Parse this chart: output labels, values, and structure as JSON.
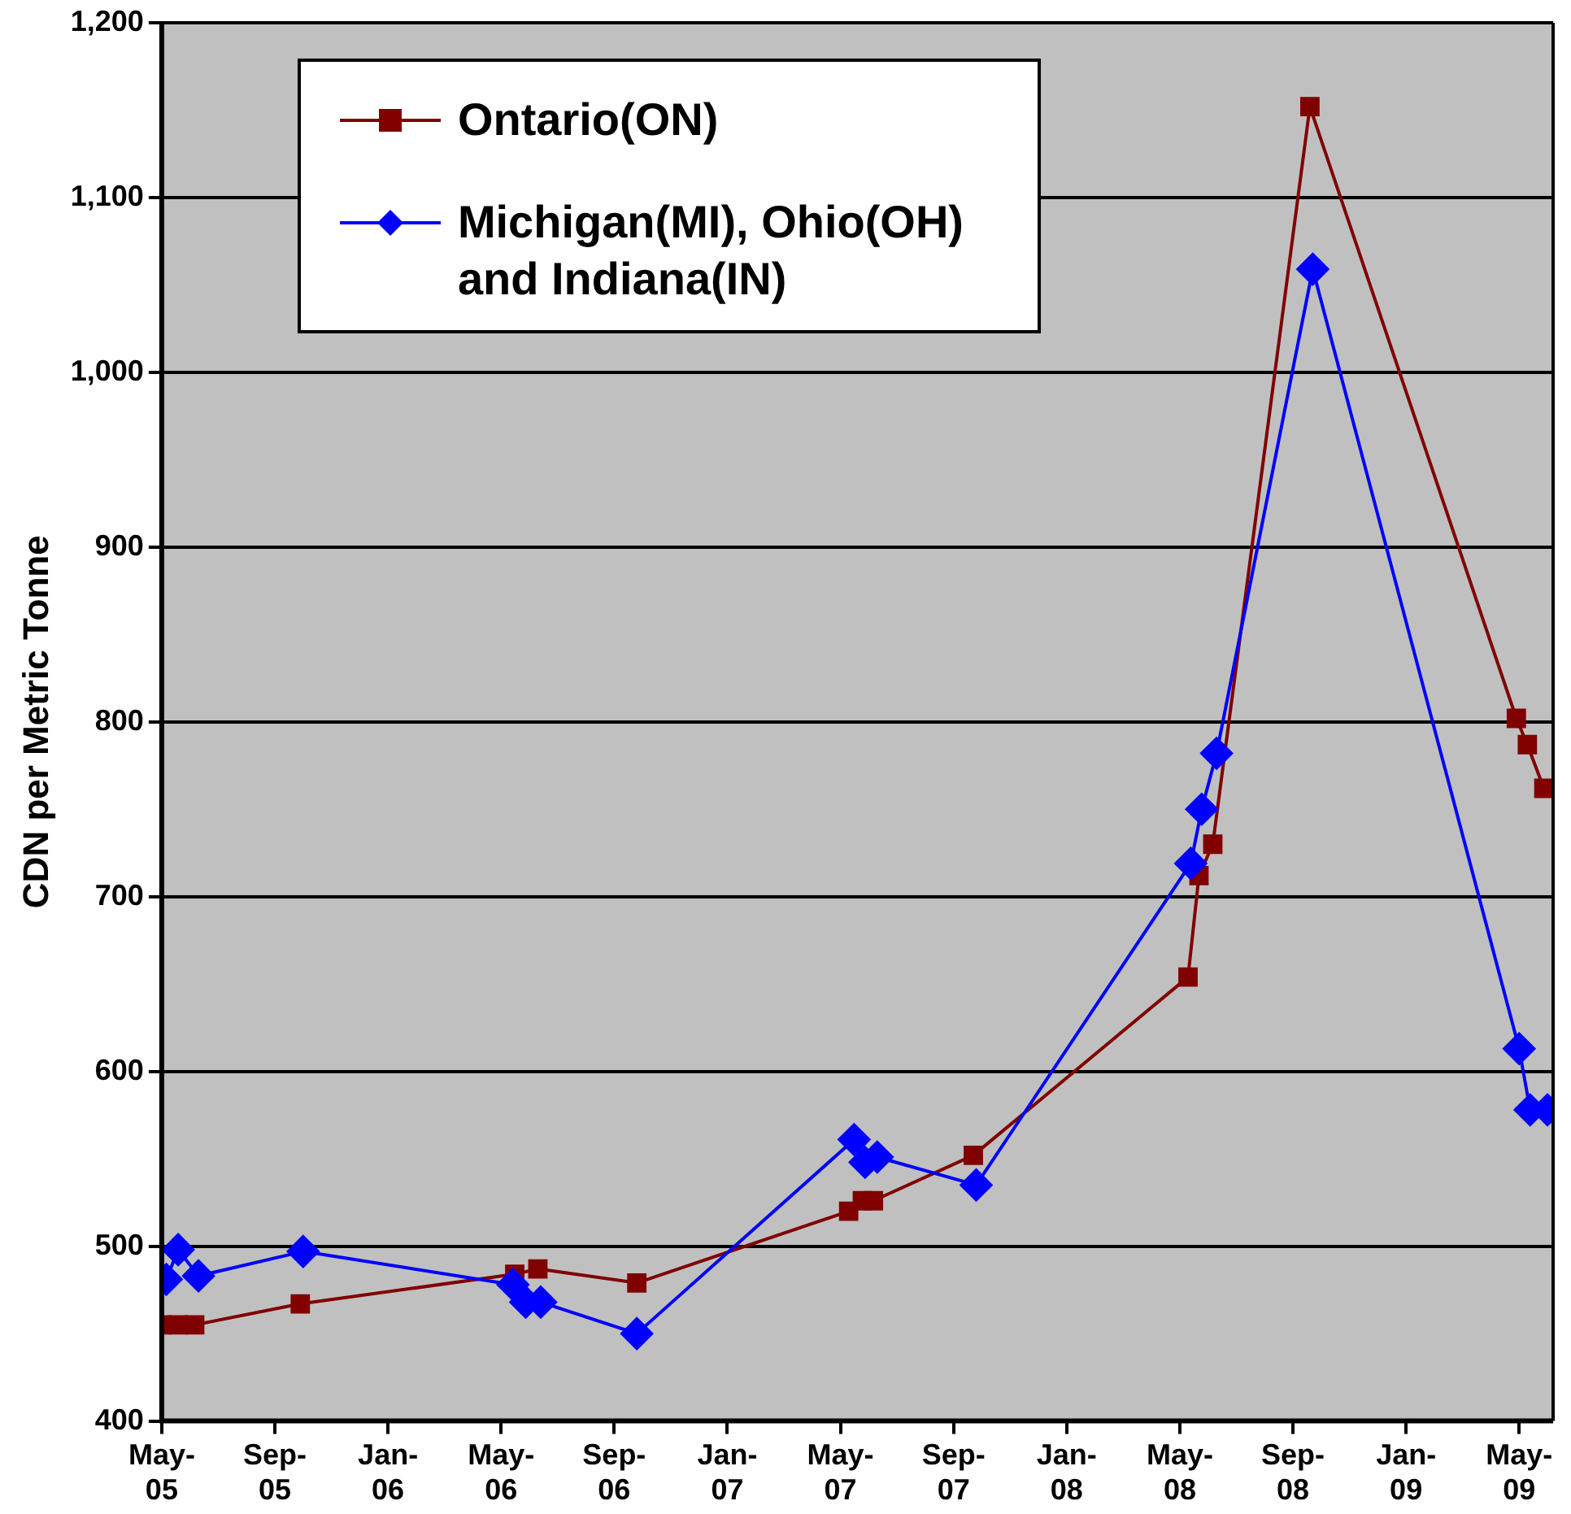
{
  "chart_data": {
    "type": "line",
    "ylabel": "CDN per Metric Tonne",
    "xlim": [
      "2005-05-01",
      "2009-06-07"
    ],
    "xticks": [
      {
        "value": "2005-05",
        "label": "May-\n05"
      },
      {
        "value": "2005-09",
        "label": "Sep-\n05"
      },
      {
        "value": "2006-01",
        "label": "Jan-\n06"
      },
      {
        "value": "2006-05",
        "label": "May-\n06"
      },
      {
        "value": "2006-09",
        "label": "Sep-\n06"
      },
      {
        "value": "2007-01",
        "label": "Jan-\n07"
      },
      {
        "value": "2007-05",
        "label": "May-\n07"
      },
      {
        "value": "2007-09",
        "label": "Sep-\n07"
      },
      {
        "value": "2008-01",
        "label": "Jan-\n08"
      },
      {
        "value": "2008-05",
        "label": "May-\n08"
      },
      {
        "value": "2008-09",
        "label": "Sep-\n08"
      },
      {
        "value": "2009-01",
        "label": "Jan-\n09"
      },
      {
        "value": "2009-05",
        "label": "May-\n09"
      }
    ],
    "ylim": [
      400,
      1200
    ],
    "yticks": [
      {
        "value": 400,
        "label": "400"
      },
      {
        "value": 500,
        "label": "500"
      },
      {
        "value": 600,
        "label": "600"
      },
      {
        "value": 700,
        "label": "700"
      },
      {
        "value": 800,
        "label": "800"
      },
      {
        "value": 900,
        "label": "900"
      },
      {
        "value": 1000,
        "label": "1,000"
      },
      {
        "value": 1100,
        "label": "1,100"
      },
      {
        "value": 1200,
        "label": "1,200"
      }
    ],
    "grid": "y",
    "legend": "top left",
    "line_style": "solid",
    "series": [
      {
        "name": "Ontario(ON)",
        "color": "#800000",
        "marker": "square",
        "x": [
          "2005-05-01",
          "2005-05-19",
          "2005-06-06",
          "2005-09-28",
          "2006-05-16",
          "2006-06-10",
          "2006-09-25",
          "2007-05-10",
          "2007-05-25",
          "2007-06-06",
          "2007-09-22",
          "2008-05-10",
          "2008-05-22",
          "2008-06-06",
          "2008-09-19",
          "2009-04-28",
          "2009-05-10",
          "2009-05-28"
        ],
        "values": [
          455,
          455,
          455,
          467,
          484,
          487,
          479,
          520,
          526,
          526,
          552,
          654,
          712,
          730,
          1152,
          802,
          787,
          762
        ]
      },
      {
        "name": "Michigan(MI), Ohio(OH) and Indiana(IN)",
        "color": "#0000ff",
        "marker": "diamond",
        "x": [
          "2005-05-06",
          "2005-05-19",
          "2005-06-10",
          "2005-10-01",
          "2006-05-14",
          "2006-05-28",
          "2006-06-13",
          "2006-09-25",
          "2007-05-16",
          "2007-05-28",
          "2007-06-10",
          "2007-09-25",
          "2008-05-13",
          "2008-05-25",
          "2008-06-10",
          "2008-09-22",
          "2009-05-01",
          "2009-05-13",
          "2009-06-01"
        ],
        "values": [
          481,
          498,
          483,
          497,
          478,
          468,
          468,
          450,
          561,
          548,
          551,
          535,
          719,
          750,
          782,
          1059,
          613,
          578,
          578
        ]
      }
    ]
  }
}
